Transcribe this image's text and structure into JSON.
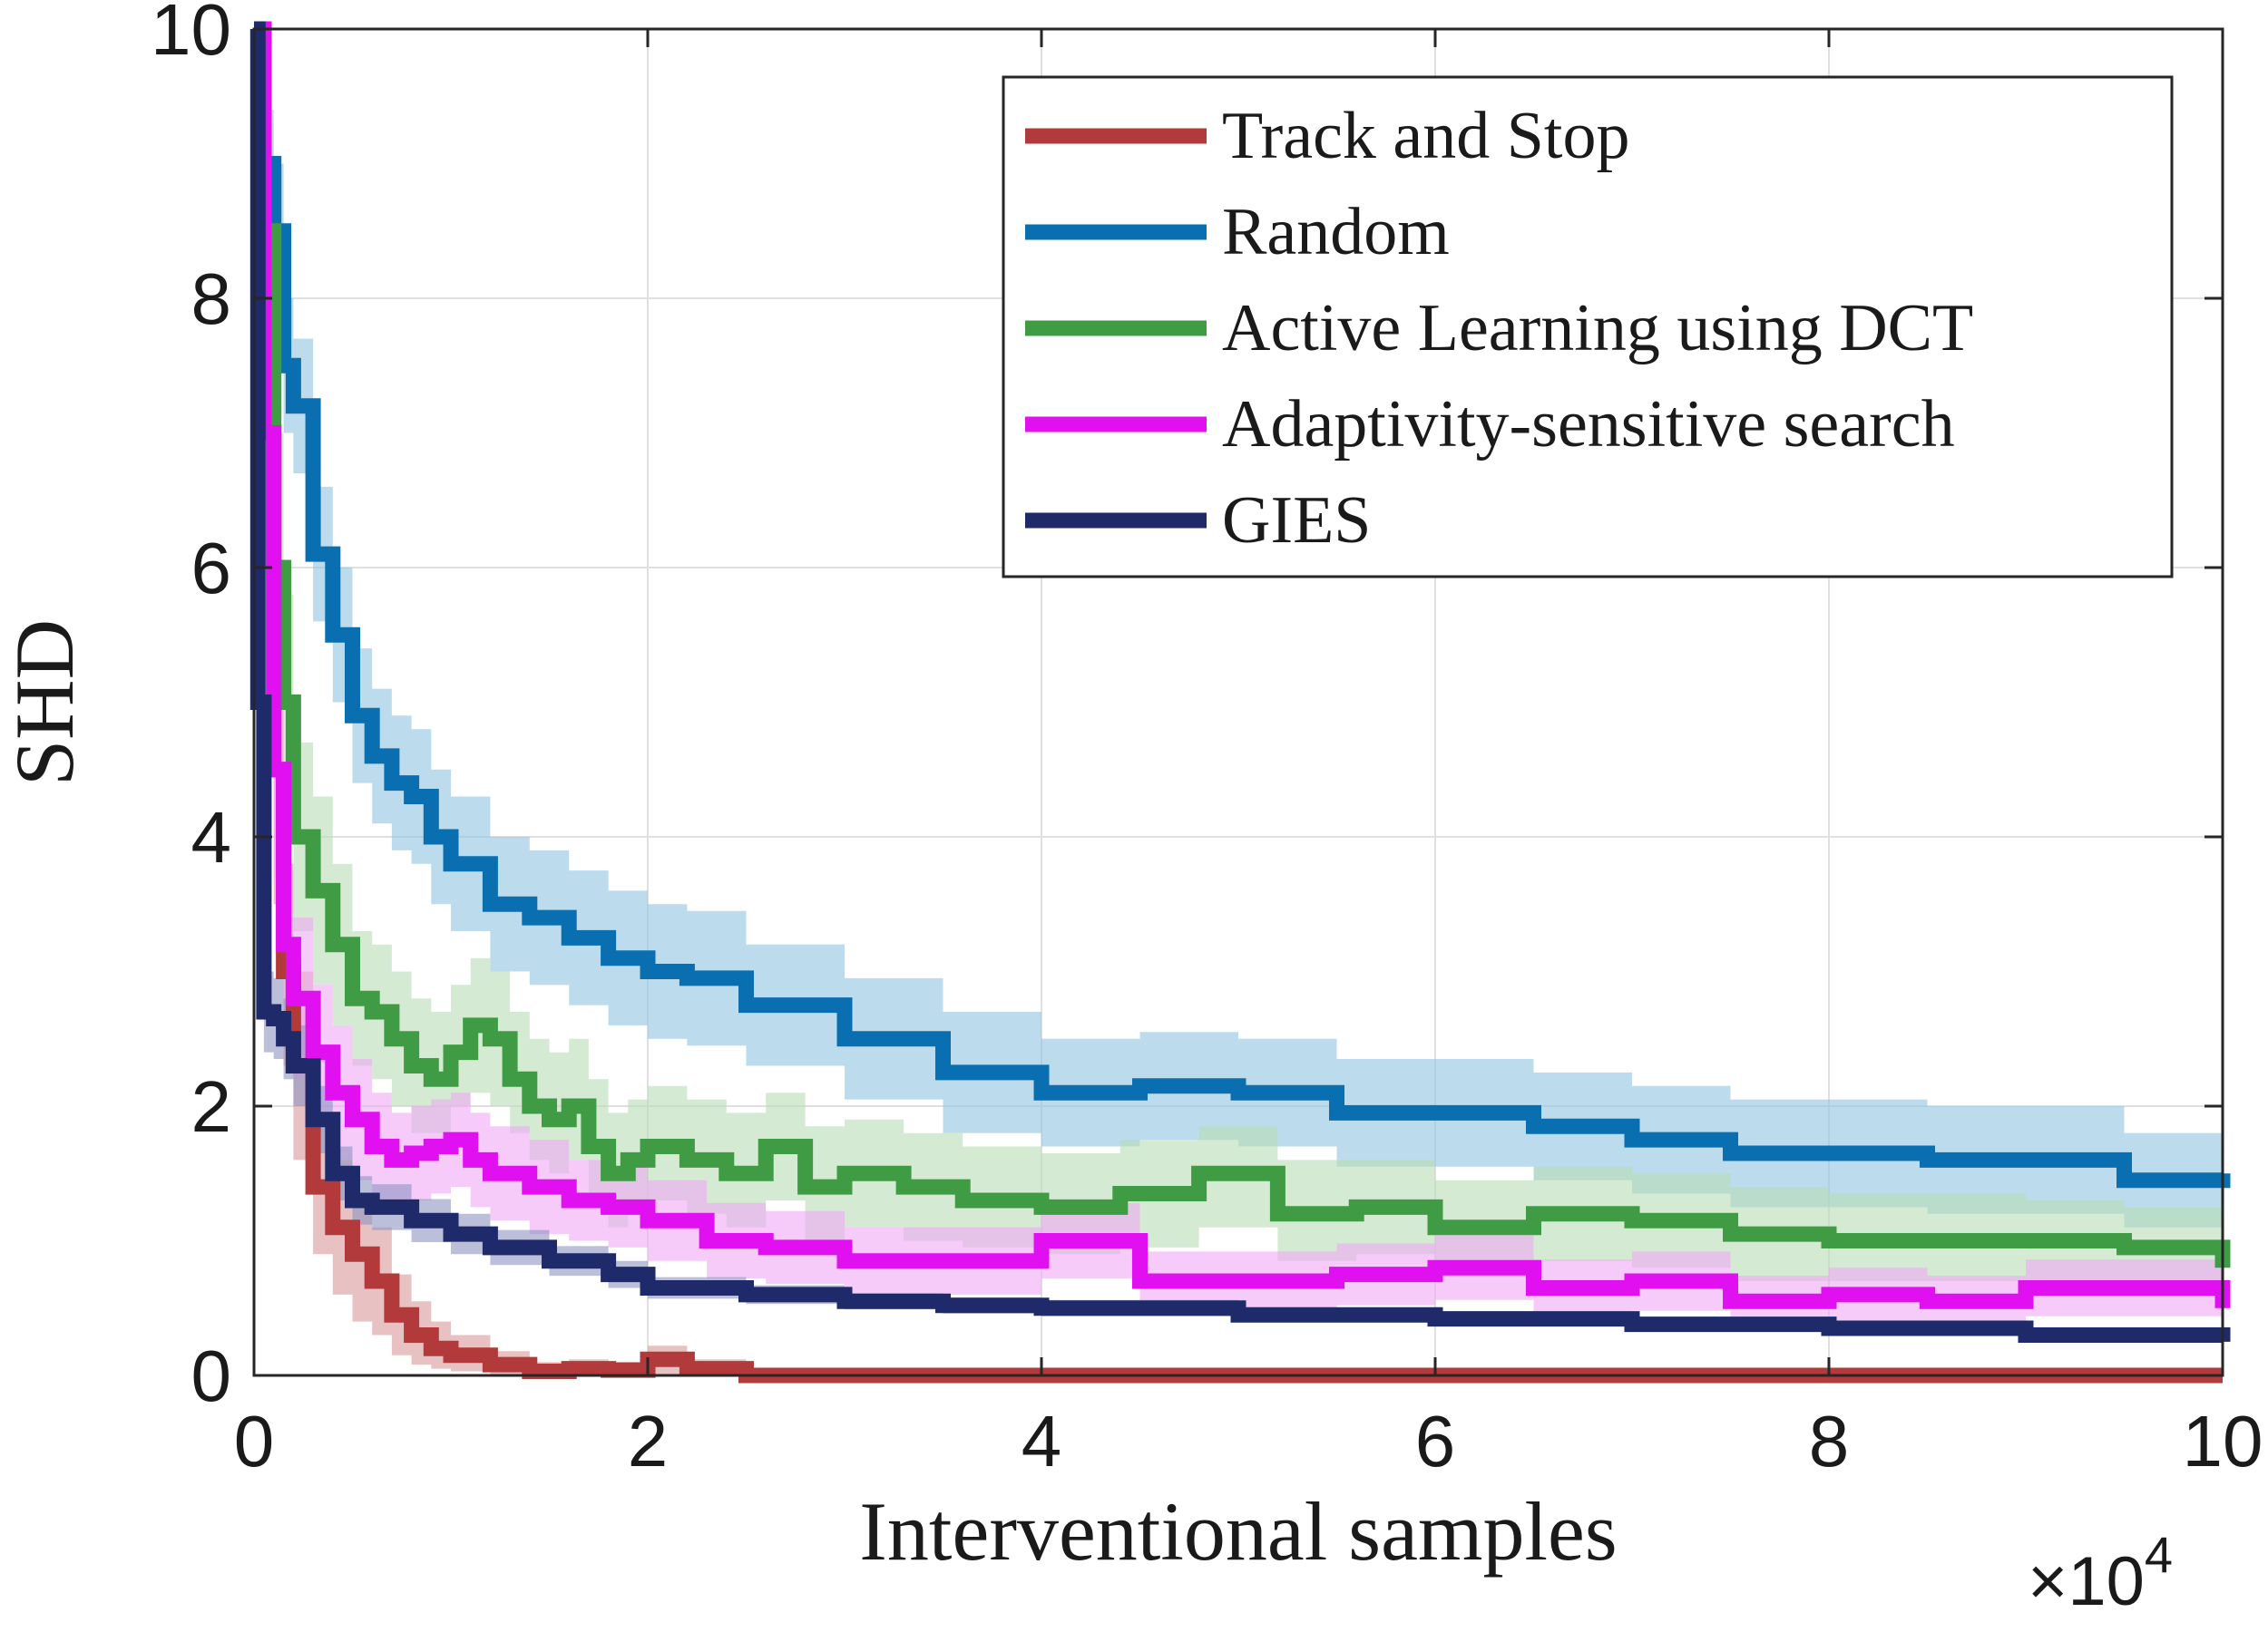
{
  "chart_data": {
    "type": "line",
    "title": "",
    "xlabel": "Interventional samples",
    "ylabel": "SHD",
    "x_multiplier_base": "×10",
    "x_multiplier_exp": "4",
    "xlim": [
      0,
      10
    ],
    "ylim": [
      0,
      10
    ],
    "xticks": [
      "0",
      "2",
      "4",
      "6",
      "8",
      "10"
    ],
    "yticks": [
      "0",
      "2",
      "4",
      "6",
      "8",
      "10"
    ],
    "grid": true,
    "legend_position": "top-right",
    "series": [
      {
        "name": "Track and Stop",
        "color": "#b23a3a",
        "band_color": "#d99a9a",
        "x": [
          0,
          0.05,
          0.1,
          0.15,
          0.2,
          0.3,
          0.4,
          0.5,
          0.6,
          0.7,
          0.8,
          0.9,
          1.0,
          1.2,
          1.4,
          1.6,
          1.8,
          2.0,
          2.2,
          2.5,
          3,
          4,
          5,
          6,
          7,
          8,
          9,
          10
        ],
        "y": [
          10,
          7.0,
          4.5,
          3.0,
          2.3,
          1.4,
          1.1,
          0.9,
          0.7,
          0.45,
          0.3,
          0.2,
          0.15,
          0.08,
          0.03,
          0.05,
          0.04,
          0.12,
          0.05,
          0,
          0,
          0,
          0,
          0,
          0,
          0,
          0,
          0
        ],
        "lower": [
          10,
          6.0,
          3.5,
          2.3,
          1.6,
          0.9,
          0.6,
          0.4,
          0.3,
          0.15,
          0.08,
          0.05,
          0.03,
          0.01,
          0,
          0,
          0,
          0,
          0,
          0,
          0,
          0,
          0,
          0,
          0,
          0,
          0,
          0
        ],
        "upper": [
          10,
          8.0,
          5.5,
          3.8,
          3.0,
          1.9,
          1.6,
          1.3,
          1.1,
          0.75,
          0.55,
          0.4,
          0.3,
          0.18,
          0.1,
          0.12,
          0.1,
          0.22,
          0.12,
          0,
          0,
          0,
          0,
          0,
          0,
          0,
          0,
          0
        ]
      },
      {
        "name": "Random",
        "color": "#0a6fb0",
        "band_color": "#8fc4e3",
        "x": [
          0,
          0.05,
          0.1,
          0.15,
          0.2,
          0.3,
          0.4,
          0.5,
          0.6,
          0.7,
          0.8,
          0.9,
          1.0,
          1.2,
          1.4,
          1.6,
          1.8,
          2.0,
          2.2,
          2.5,
          3.0,
          3.5,
          4.0,
          4.5,
          5.0,
          5.5,
          6.0,
          6.5,
          7.0,
          7.5,
          8.0,
          8.5,
          9.0,
          9.5,
          10.0
        ],
        "y": [
          10,
          9.0,
          8.5,
          7.5,
          7.2,
          6.1,
          5.5,
          4.9,
          4.6,
          4.4,
          4.3,
          4.0,
          3.8,
          3.5,
          3.4,
          3.25,
          3.1,
          3.0,
          2.95,
          2.75,
          2.5,
          2.25,
          2.1,
          2.15,
          2.1,
          1.95,
          1.95,
          1.85,
          1.75,
          1.65,
          1.65,
          1.6,
          1.6,
          1.45,
          1.5
        ],
        "lower": [
          10,
          8.6,
          8.0,
          7.0,
          6.7,
          5.6,
          5.0,
          4.4,
          4.1,
          3.9,
          3.8,
          3.5,
          3.3,
          3.0,
          2.9,
          2.75,
          2.6,
          2.5,
          2.45,
          2.3,
          2.05,
          1.8,
          1.7,
          1.75,
          1.7,
          1.55,
          1.55,
          1.45,
          1.35,
          1.25,
          1.25,
          1.2,
          1.2,
          1.1,
          1.2
        ],
        "upper": [
          10,
          9.4,
          9.0,
          8.0,
          7.7,
          6.6,
          6.0,
          5.4,
          5.1,
          4.9,
          4.8,
          4.5,
          4.3,
          4.0,
          3.9,
          3.75,
          3.6,
          3.5,
          3.45,
          3.2,
          2.95,
          2.7,
          2.5,
          2.55,
          2.5,
          2.35,
          2.35,
          2.25,
          2.15,
          2.05,
          2.05,
          2.0,
          2.0,
          1.8,
          1.85
        ]
      },
      {
        "name": "Active Learning using DCT",
        "color": "#3f9c45",
        "band_color": "#b9dcb4",
        "x": [
          0,
          0.05,
          0.1,
          0.15,
          0.2,
          0.3,
          0.4,
          0.5,
          0.6,
          0.7,
          0.8,
          0.9,
          1.0,
          1.1,
          1.2,
          1.3,
          1.4,
          1.5,
          1.6,
          1.7,
          1.8,
          1.9,
          2.0,
          2.2,
          2.4,
          2.6,
          2.8,
          3.0,
          3.3,
          3.6,
          4.0,
          4.4,
          4.8,
          5.2,
          5.6,
          6.0,
          6.5,
          7.0,
          7.5,
          8.0,
          8.5,
          9.0,
          9.5,
          10.0
        ],
        "y": [
          10,
          8.5,
          6.0,
          5.0,
          4.0,
          3.6,
          3.2,
          2.8,
          2.7,
          2.5,
          2.3,
          2.2,
          2.4,
          2.6,
          2.5,
          2.2,
          2.0,
          1.9,
          2.0,
          1.7,
          1.5,
          1.6,
          1.7,
          1.6,
          1.5,
          1.7,
          1.4,
          1.5,
          1.4,
          1.3,
          1.25,
          1.35,
          1.5,
          1.2,
          1.25,
          1.1,
          1.2,
          1.15,
          1.05,
          1.0,
          1.0,
          1.0,
          0.95,
          0.8
        ],
        "lower": [
          10,
          7.5,
          5.0,
          4.2,
          3.3,
          2.9,
          2.6,
          2.3,
          2.2,
          2.0,
          1.8,
          1.8,
          2.0,
          2.1,
          2.0,
          1.8,
          1.6,
          1.5,
          1.6,
          1.3,
          1.1,
          1.2,
          1.3,
          1.2,
          1.1,
          1.3,
          1.0,
          1.1,
          1.0,
          0.95,
          0.9,
          0.95,
          1.1,
          0.85,
          0.9,
          0.8,
          0.85,
          0.8,
          0.7,
          0.7,
          0.7,
          0.7,
          0.65,
          0.6
        ],
        "upper": [
          10,
          9.3,
          7.0,
          5.8,
          4.7,
          4.3,
          3.8,
          3.3,
          3.2,
          3.0,
          2.8,
          2.7,
          2.9,
          3.1,
          3.0,
          2.7,
          2.5,
          2.4,
          2.5,
          2.2,
          1.95,
          2.05,
          2.15,
          2.05,
          1.95,
          2.1,
          1.85,
          1.9,
          1.8,
          1.7,
          1.65,
          1.75,
          1.85,
          1.6,
          1.6,
          1.45,
          1.55,
          1.5,
          1.4,
          1.35,
          1.35,
          1.3,
          1.25,
          1.1
        ]
      },
      {
        "name": "Adaptivity-sensitive search",
        "color": "#e010f0",
        "band_color": "#f0a8f6",
        "x": [
          0,
          0.05,
          0.1,
          0.15,
          0.2,
          0.3,
          0.4,
          0.5,
          0.6,
          0.7,
          0.8,
          0.9,
          1.0,
          1.1,
          1.2,
          1.4,
          1.6,
          1.8,
          2.0,
          2.3,
          2.6,
          3.0,
          3.5,
          4.0,
          4.5,
          5.0,
          5.5,
          6.0,
          6.5,
          7.0,
          7.5,
          8.0,
          8.5,
          9.0,
          9.5,
          10.0
        ],
        "y": [
          10,
          7.0,
          4.5,
          3.2,
          2.8,
          2.4,
          2.1,
          1.9,
          1.7,
          1.6,
          1.65,
          1.7,
          1.75,
          1.6,
          1.5,
          1.4,
          1.3,
          1.25,
          1.15,
          1.0,
          0.95,
          0.85,
          0.85,
          1.0,
          0.7,
          0.7,
          0.75,
          0.8,
          0.65,
          0.7,
          0.55,
          0.6,
          0.55,
          0.65,
          0.65,
          0.5
        ],
        "lower": [
          10,
          6.0,
          3.7,
          2.6,
          2.2,
          1.9,
          1.6,
          1.45,
          1.3,
          1.25,
          1.3,
          1.35,
          1.4,
          1.25,
          1.15,
          1.05,
          1.0,
          0.95,
          0.85,
          0.72,
          0.68,
          0.6,
          0.6,
          0.72,
          0.48,
          0.48,
          0.52,
          0.56,
          0.44,
          0.48,
          0.36,
          0.4,
          0.36,
          0.44,
          0.44,
          0.33
        ],
        "upper": [
          10,
          8.0,
          5.3,
          3.8,
          3.4,
          2.9,
          2.6,
          2.35,
          2.1,
          1.95,
          2.0,
          2.05,
          2.1,
          1.95,
          1.85,
          1.75,
          1.6,
          1.55,
          1.45,
          1.28,
          1.22,
          1.1,
          1.1,
          1.28,
          0.92,
          0.92,
          0.98,
          1.04,
          0.86,
          0.92,
          0.74,
          0.8,
          0.74,
          0.86,
          0.86,
          0.67
        ]
      },
      {
        "name": "GIES",
        "color": "#1f2a6b",
        "band_color": "#8e95c2",
        "x": [
          0,
          0.02,
          0.05,
          0.1,
          0.15,
          0.2,
          0.3,
          0.4,
          0.5,
          0.6,
          0.8,
          1.0,
          1.2,
          1.5,
          1.8,
          2.0,
          2.5,
          3.0,
          3.5,
          4.0,
          5.0,
          6.0,
          7.0,
          8.0,
          9.0,
          10.0
        ],
        "y": [
          10,
          5.0,
          2.7,
          2.65,
          2.5,
          2.3,
          1.9,
          1.5,
          1.3,
          1.25,
          1.15,
          1.05,
          0.95,
          0.85,
          0.75,
          0.65,
          0.6,
          0.55,
          0.52,
          0.5,
          0.45,
          0.42,
          0.38,
          0.35,
          0.3,
          0.25
        ],
        "lower": [
          10,
          4.5,
          2.4,
          2.35,
          2.2,
          2.0,
          1.65,
          1.3,
          1.12,
          1.08,
          0.99,
          0.9,
          0.82,
          0.74,
          0.65,
          0.57,
          0.53,
          0.49,
          0.46,
          0.44,
          0.4,
          0.37,
          0.33,
          0.3,
          0.26,
          0.22
        ],
        "upper": [
          10,
          5.5,
          3.0,
          2.95,
          2.8,
          2.6,
          2.15,
          1.7,
          1.48,
          1.42,
          1.31,
          1.2,
          1.08,
          0.96,
          0.85,
          0.73,
          0.67,
          0.61,
          0.58,
          0.56,
          0.5,
          0.47,
          0.43,
          0.4,
          0.34,
          0.29
        ]
      }
    ]
  }
}
